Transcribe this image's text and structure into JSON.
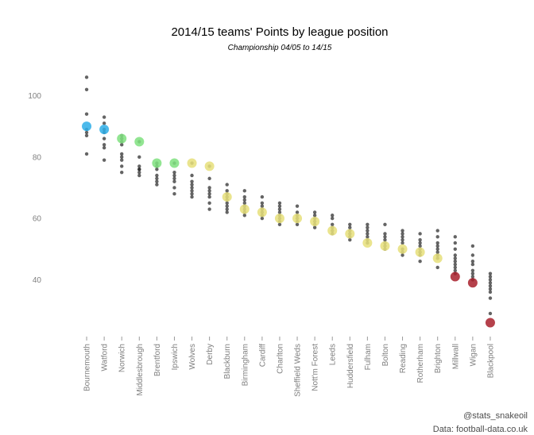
{
  "chart_data": {
    "type": "scatter",
    "title": "2014/15 teams' Points by league position",
    "subtitle": "Championship 04/05 to 14/15",
    "xlabel": "",
    "ylabel": "",
    "ylim": [
      22,
      111
    ],
    "y_ticks": [
      40,
      60,
      80,
      100
    ],
    "grid": false,
    "legend": "none",
    "categories": [
      "Bournemouth",
      "Watford",
      "Norwich",
      "Middlesbrough",
      "Brentford",
      "Ipswich",
      "Wolves",
      "Derby",
      "Blackburn",
      "Birmingham",
      "Cardiff",
      "Charlton",
      "Sheffield Weds",
      "Nott'm Forest",
      "Leeds",
      "Huddersfield",
      "Fulham",
      "Bolton",
      "Reading",
      "Rotherham",
      "Brighton",
      "Millwall",
      "Wigan",
      "Blackpool"
    ],
    "highlight_points": [
      90,
      89,
      86,
      85,
      78,
      78,
      78,
      77,
      67,
      63,
      62,
      60,
      60,
      59,
      56,
      55,
      52,
      51,
      50,
      49,
      47,
      41,
      39,
      26
    ],
    "highlight_colors": [
      "#2eaee8",
      "#2eaee8",
      "#7fe07f",
      "#7fe07f",
      "#7fe07f",
      "#7fe07f",
      "#e6df7a",
      "#e6df7a",
      "#e6df7a",
      "#e6df7a",
      "#e6df7a",
      "#e6df7a",
      "#e6df7a",
      "#e6df7a",
      "#e6df7a",
      "#e6df7a",
      "#e6df7a",
      "#e6df7a",
      "#e6df7a",
      "#e6df7a",
      "#e6df7a",
      "#a8202c",
      "#a8202c",
      "#a8202c"
    ],
    "historical_points": [
      [
        106,
        102,
        94,
        89,
        88,
        87,
        81
      ],
      [
        93,
        91,
        89,
        88,
        86,
        84,
        83,
        79
      ],
      [
        87,
        86,
        85,
        84,
        81,
        80,
        79,
        77,
        75
      ],
      [
        85,
        80,
        77,
        76,
        76,
        75,
        74
      ],
      [
        78,
        77,
        76,
        74,
        73,
        72,
        71
      ],
      [
        78,
        75,
        74,
        73,
        72,
        70,
        68
      ],
      [
        78,
        74,
        72,
        71,
        70,
        69,
        68,
        67
      ],
      [
        77,
        73,
        70,
        69,
        68,
        67,
        65,
        63
      ],
      [
        71,
        69,
        68,
        67,
        66,
        65,
        64,
        63,
        62
      ],
      [
        69,
        67,
        66,
        65,
        64,
        63,
        62,
        61
      ],
      [
        67,
        65,
        64,
        63,
        62,
        61,
        60
      ],
      [
        65,
        64,
        63,
        62,
        61,
        60,
        59,
        58
      ],
      [
        64,
        62,
        61,
        60,
        59,
        58
      ],
      [
        62,
        61,
        60,
        59,
        58,
        57
      ],
      [
        61,
        60,
        58,
        57,
        56,
        55
      ],
      [
        58,
        57,
        56,
        55,
        54,
        53
      ],
      [
        58,
        57,
        56,
        55,
        54,
        53,
        52
      ],
      [
        58,
        55,
        54,
        53,
        52,
        51,
        50
      ],
      [
        56,
        55,
        54,
        53,
        52,
        50,
        49,
        48
      ],
      [
        55,
        53,
        52,
        51,
        50,
        49,
        48,
        46
      ],
      [
        56,
        54,
        52,
        51,
        50,
        49,
        48,
        47,
        44
      ],
      [
        54,
        52,
        50,
        48,
        47,
        46,
        45,
        44,
        43,
        42
      ],
      [
        51,
        48,
        46,
        45,
        43,
        42,
        41,
        40
      ],
      [
        42,
        41,
        40,
        39,
        38,
        37,
        36,
        34,
        29
      ]
    ],
    "historical_color": "#222222",
    "captions": [
      "@stats_snakeoil",
      "Data: football-data.co.uk"
    ]
  }
}
